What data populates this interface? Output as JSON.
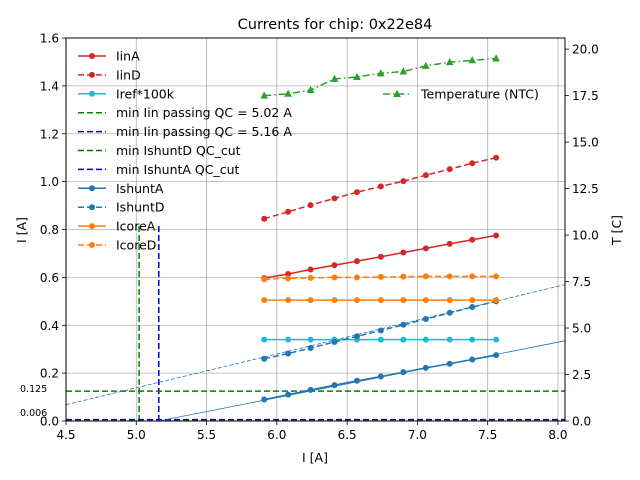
{
  "chart_data": {
    "type": "line",
    "title": "Currents for chip: 0x22e84",
    "xlabel": "I [A]",
    "ylabel": "I [A]",
    "y2label": "T [C]",
    "xlim": [
      4.5,
      8.05
    ],
    "ylim": [
      0.0,
      1.6
    ],
    "y2lim": [
      0.0,
      20.6
    ],
    "xticks": [
      "4.5",
      "5.0",
      "5.5",
      "6.0",
      "6.5",
      "7.0",
      "7.5",
      "8.0"
    ],
    "yticks": [
      "0.0",
      "0.2",
      "0.4",
      "0.6",
      "0.8",
      "1.0",
      "1.2",
      "1.4",
      "1.6"
    ],
    "y2ticks": [
      "0.0",
      "2.5",
      "5.0",
      "7.5",
      "10.0",
      "12.5",
      "15.0",
      "17.5",
      "20.0"
    ],
    "grid": true,
    "x": [
      5.91,
      6.08,
      6.24,
      6.41,
      6.57,
      6.74,
      6.9,
      7.06,
      7.23,
      7.39,
      7.56
    ],
    "series": [
      {
        "name": "IinA",
        "color": "#d62728",
        "dash": "solid",
        "marker": "circle",
        "values": [
          0.597,
          0.614,
          0.633,
          0.651,
          0.668,
          0.686,
          0.704,
          0.721,
          0.74,
          0.757,
          0.775
        ]
      },
      {
        "name": "IinD",
        "color": "#d62728",
        "dash": "dashed",
        "marker": "circle",
        "values": [
          0.845,
          0.874,
          0.902,
          0.93,
          0.956,
          0.98,
          1.002,
          1.027,
          1.052,
          1.077,
          1.1
        ]
      },
      {
        "name": "Iref*100k",
        "color": "#17becf",
        "dash": "solid",
        "marker": "circle",
        "values": [
          0.34,
          0.34,
          0.34,
          0.34,
          0.34,
          0.34,
          0.34,
          0.34,
          0.34,
          0.34,
          0.34
        ]
      },
      {
        "name": "IshuntA",
        "color": "#1f77b4",
        "dash": "solid",
        "marker": "circle",
        "values": [
          0.09,
          0.11,
          0.13,
          0.15,
          0.168,
          0.186,
          0.204,
          0.222,
          0.239,
          0.257,
          0.275
        ]
      },
      {
        "name": "IshuntD",
        "color": "#1f77b4",
        "dash": "dashed",
        "marker": "circle",
        "values": [
          0.26,
          0.282,
          0.305,
          0.33,
          0.354,
          0.378,
          0.402,
          0.426,
          0.452,
          0.476,
          0.5
        ]
      },
      {
        "name": "IcoreA",
        "color": "#ff7f0e",
        "dash": "solid",
        "marker": "circle",
        "values": [
          0.505,
          0.505,
          0.505,
          0.505,
          0.505,
          0.505,
          0.505,
          0.505,
          0.505,
          0.505,
          0.505
        ]
      },
      {
        "name": "IcoreD",
        "color": "#ff7f0e",
        "dash": "dashed",
        "marker": "circle",
        "values": [
          0.592,
          0.596,
          0.598,
          0.6,
          0.6,
          0.602,
          0.603,
          0.604,
          0.604,
          0.604,
          0.604
        ]
      }
    ],
    "temperature_series": {
      "name": "Temperature (NTC)",
      "color": "#2ca02c",
      "axis": "right",
      "dash": "dashdot",
      "marker": "triangle",
      "values": [
        17.5,
        17.6,
        17.8,
        18.4,
        18.5,
        18.7,
        18.8,
        19.1,
        19.3,
        19.4,
        19.5
      ]
    },
    "fit_lines": [
      {
        "name": "IshuntA fit",
        "color": "#1f77b4",
        "dash": "solid",
        "x": [
          5.16,
          8.05
        ],
        "y": [
          0.0,
          0.335
        ]
      },
      {
        "name": "IshuntD fit",
        "color": "#1f77b4",
        "dash": "dashed",
        "x": [
          4.5,
          8.05
        ],
        "y": [
          0.068,
          0.57
        ]
      }
    ],
    "threshold_lines": [
      {
        "name": "min Iin passing QC = 5.02 A",
        "color": "#008000",
        "orientation": "vertical",
        "value": 5.02,
        "y_extent": [
          0,
          0.82
        ]
      },
      {
        "name": "min Iin passing QC = 5.16 A",
        "color": "#0000cd",
        "orientation": "vertical",
        "value": 5.16,
        "y_extent": [
          0,
          0.82
        ]
      },
      {
        "name": "min IshuntD QC_cut",
        "color": "#008000",
        "orientation": "horizontal",
        "value": 0.125
      },
      {
        "name": "min IshuntA QC_cut",
        "color": "#0000cd",
        "orientation": "horizontal",
        "value": 0.006
      }
    ],
    "annotations": [
      "0.125",
      "0.006"
    ],
    "legend_left": [
      {
        "label": "IinA",
        "color": "#d62728",
        "dash": "solid",
        "marker": "circle"
      },
      {
        "label": "IinD",
        "color": "#d62728",
        "dash": "dashed",
        "marker": "circle"
      },
      {
        "label": "Iref*100k",
        "color": "#17becf",
        "dash": "solid",
        "marker": "circle"
      },
      {
        "label": "min Iin passing QC = 5.02 A",
        "color": "#008000",
        "dash": "dashed",
        "marker": "none"
      },
      {
        "label": "min Iin passing QC = 5.16 A",
        "color": "#0000cd",
        "dash": "dashed",
        "marker": "none"
      },
      {
        "label": "min IshuntD QC_cut",
        "color": "#008000",
        "dash": "dashed",
        "marker": "none"
      },
      {
        "label": "min IshuntA QC_cut",
        "color": "#0000cd",
        "dash": "dashed",
        "marker": "none"
      },
      {
        "label": "IshuntA",
        "color": "#1f77b4",
        "dash": "solid",
        "marker": "circle"
      },
      {
        "label": "IshuntD",
        "color": "#1f77b4",
        "dash": "dashed",
        "marker": "circle"
      },
      {
        "label": "IcoreA",
        "color": "#ff7f0e",
        "dash": "solid",
        "marker": "circle"
      },
      {
        "label": "IcoreD",
        "color": "#ff7f0e",
        "dash": "dashed",
        "marker": "circle"
      }
    ],
    "legend_right": [
      {
        "label": "Temperature (NTC)",
        "color": "#2ca02c",
        "dash": "dashdot",
        "marker": "triangle"
      }
    ],
    "legend_placement": "upper-left (currents), upper-right (temperature)"
  }
}
